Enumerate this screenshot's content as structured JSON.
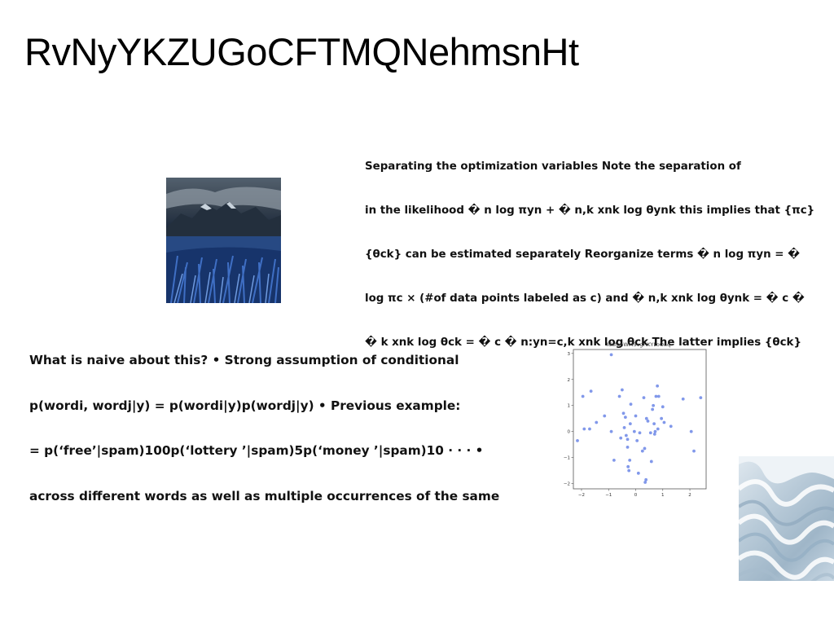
{
  "title": "RvNyYKZUGoCFTMQNehmsnHt",
  "right_text": {
    "lines": [
      "Separating the optimization variables Note the separation of",
      "in the likelihood � n log πyn + � n,k xnk log θynk this implies that {πc}",
      "{θck} can be estimated separately Reorganize terms � n log πyn = �",
      "log πc × (#of data points labeled as c) and � n,k xnk log θynk = � c �",
      "� k xnk log θck = � c � n:yn=c,k xnk log θck The latter implies {θck}"
    ]
  },
  "left_text": {
    "lines": [
      "What is naive about this? • Strong assumption of conditional",
      "p(wordi, wordj|y) = p(wordi|y)p(wordj|y) • Previous example:",
      "= p(‘free’|spam)100p(‘lottery ’|spam)5p(‘money ’|spam)10 · · · •",
      "across different words as well as multiple occurrences of the same"
    ]
  },
  "images": {
    "mountain": "mountain-lake-photo",
    "waves": "abstract-waves-photo"
  },
  "chart_data": {
    "type": "scatter",
    "title": "IdafanWMSvgHKYLoOaq",
    "xlabel": "",
    "ylabel": "",
    "xlim": [
      -2.3,
      2.6
    ],
    "ylim": [
      -2.2,
      3.15
    ],
    "xticks": [
      -2,
      -1,
      0,
      1,
      2
    ],
    "yticks": [
      -2,
      -1,
      0,
      1,
      2,
      3
    ],
    "point_color": "#6b86e6",
    "points": [
      [
        -0.9,
        2.95
      ],
      [
        -2.15,
        -0.35
      ],
      [
        -1.95,
        1.35
      ],
      [
        -1.9,
        0.1
      ],
      [
        -1.7,
        0.1
      ],
      [
        -1.65,
        1.55
      ],
      [
        -1.45,
        0.35
      ],
      [
        -1.15,
        0.6
      ],
      [
        -0.9,
        0.0
      ],
      [
        -0.8,
        -1.1
      ],
      [
        -0.6,
        1.35
      ],
      [
        -0.55,
        -0.25
      ],
      [
        -0.5,
        1.6
      ],
      [
        -0.45,
        0.7
      ],
      [
        -0.42,
        0.15
      ],
      [
        -0.38,
        0.55
      ],
      [
        -0.35,
        -0.15
      ],
      [
        -0.3,
        -0.3
      ],
      [
        -0.3,
        -0.6
      ],
      [
        -0.28,
        -1.35
      ],
      [
        -0.25,
        -1.5
      ],
      [
        -0.22,
        -1.1
      ],
      [
        -0.2,
        0.3
      ],
      [
        -0.18,
        1.05
      ],
      [
        -0.05,
        0.0
      ],
      [
        0.0,
        0.6
      ],
      [
        0.05,
        -0.35
      ],
      [
        0.1,
        -1.6
      ],
      [
        0.15,
        -0.05
      ],
      [
        0.25,
        -0.75
      ],
      [
        0.3,
        1.3
      ],
      [
        0.33,
        -0.65
      ],
      [
        0.35,
        -1.95
      ],
      [
        0.38,
        -1.85
      ],
      [
        0.4,
        0.5
      ],
      [
        0.45,
        0.4
      ],
      [
        0.55,
        -0.05
      ],
      [
        0.58,
        -1.15
      ],
      [
        0.62,
        0.85
      ],
      [
        0.65,
        1.0
      ],
      [
        0.68,
        0.3
      ],
      [
        0.7,
        -0.1
      ],
      [
        0.72,
        0.0
      ],
      [
        0.75,
        1.35
      ],
      [
        0.8,
        1.75
      ],
      [
        0.82,
        0.1
      ],
      [
        0.85,
        1.35
      ],
      [
        0.95,
        0.5
      ],
      [
        1.0,
        0.95
      ],
      [
        1.05,
        0.35
      ],
      [
        1.3,
        0.2
      ],
      [
        1.75,
        1.25
      ],
      [
        2.05,
        0.0
      ],
      [
        2.15,
        -0.75
      ],
      [
        2.4,
        1.3
      ]
    ]
  }
}
